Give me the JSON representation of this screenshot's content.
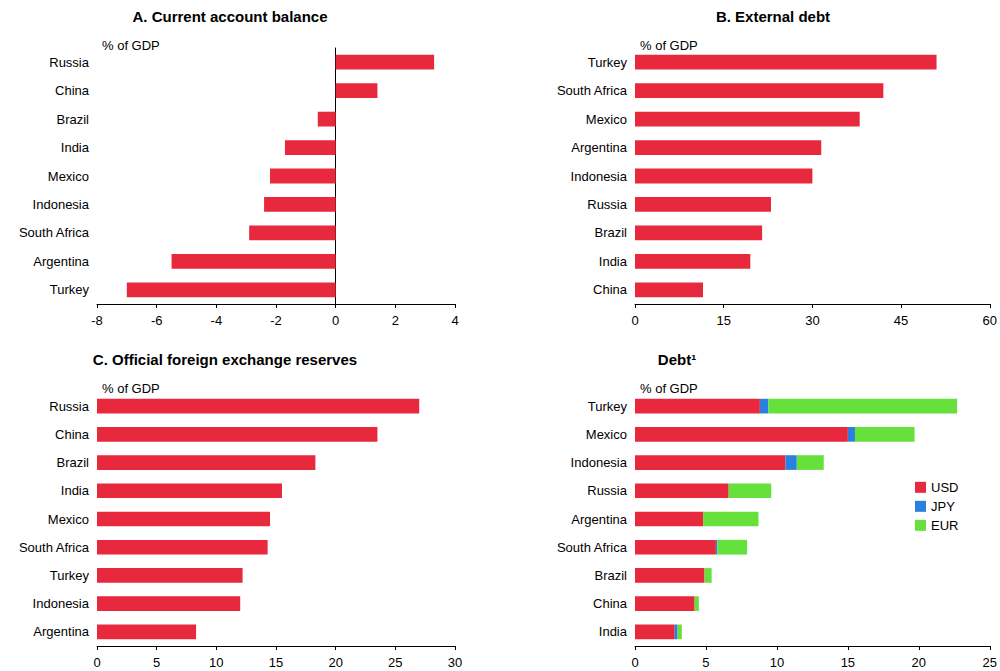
{
  "chart_data": [
    {
      "type": "bar",
      "title": "A. Current account balance",
      "subtitle": "% of GDP",
      "orientation": "horizontal",
      "categories": [
        "Russia",
        "China",
        "Brazil",
        "India",
        "Mexico",
        "Indonesia",
        "South Africa",
        "Argentina",
        "Turkey"
      ],
      "values": [
        3.3,
        1.4,
        -0.6,
        -1.7,
        -2.2,
        -2.4,
        -2.9,
        -5.5,
        -7.0
      ],
      "color": "#e8283c",
      "xlim": [
        -8,
        4
      ],
      "xticks": [
        -8,
        -6,
        -4,
        -2,
        0,
        2,
        4
      ],
      "grid": false
    },
    {
      "type": "bar",
      "title": "B. External debt",
      "subtitle": "% of GDP",
      "orientation": "horizontal",
      "categories": [
        "Turkey",
        "South Africa",
        "Mexico",
        "Argentina",
        "Indonesia",
        "Russia",
        "Brazil",
        "India",
        "China"
      ],
      "values": [
        51,
        42,
        38,
        31.5,
        30,
        23,
        21.5,
        19.5,
        11.5
      ],
      "color": "#e8283c",
      "xlim": [
        0,
        60
      ],
      "xticks": [
        0,
        15,
        30,
        45,
        60
      ],
      "grid": false
    },
    {
      "type": "bar",
      "title": "C. Official foreign exchange reserves",
      "subtitle": "% of GDP",
      "orientation": "horizontal",
      "categories": [
        "Russia",
        "China",
        "Brazil",
        "India",
        "Mexico",
        "South Africa",
        "Turkey",
        "Indonesia",
        "Argentina"
      ],
      "values": [
        27,
        23.5,
        18.3,
        15.5,
        14.5,
        14.3,
        12.2,
        12,
        8.3
      ],
      "color": "#e8283c",
      "xlim": [
        0,
        30
      ],
      "xticks": [
        0,
        5,
        10,
        15,
        20,
        25,
        30
      ],
      "grid": false
    },
    {
      "type": "bar",
      "title": "Debt¹",
      "subtitle": "% of GDP",
      "orientation": "horizontal",
      "stacked": true,
      "legend": "right",
      "categories": [
        "Turkey",
        "Mexico",
        "Indonesia",
        "Russia",
        "Argentina",
        "South Africa",
        "Brazil",
        "China",
        "India"
      ],
      "series": [
        {
          "name": "USD",
          "color": "#e8283c",
          "values": [
            8.8,
            15,
            10.6,
            6.6,
            4.8,
            5.7,
            4.9,
            4.2,
            2.8
          ]
        },
        {
          "name": "JPY",
          "color": "#2b7fe0",
          "values": [
            0.6,
            0.5,
            0.8,
            0,
            0,
            0.1,
            0,
            0,
            0.2
          ]
        },
        {
          "name": "EUR",
          "color": "#66e03a",
          "values": [
            13.3,
            4.2,
            1.9,
            3.0,
            3.9,
            2.1,
            0.5,
            0.3,
            0.3
          ]
        }
      ],
      "xlim": [
        0,
        25
      ],
      "xticks": [
        0,
        5,
        10,
        15,
        20,
        25
      ],
      "grid": false
    }
  ]
}
